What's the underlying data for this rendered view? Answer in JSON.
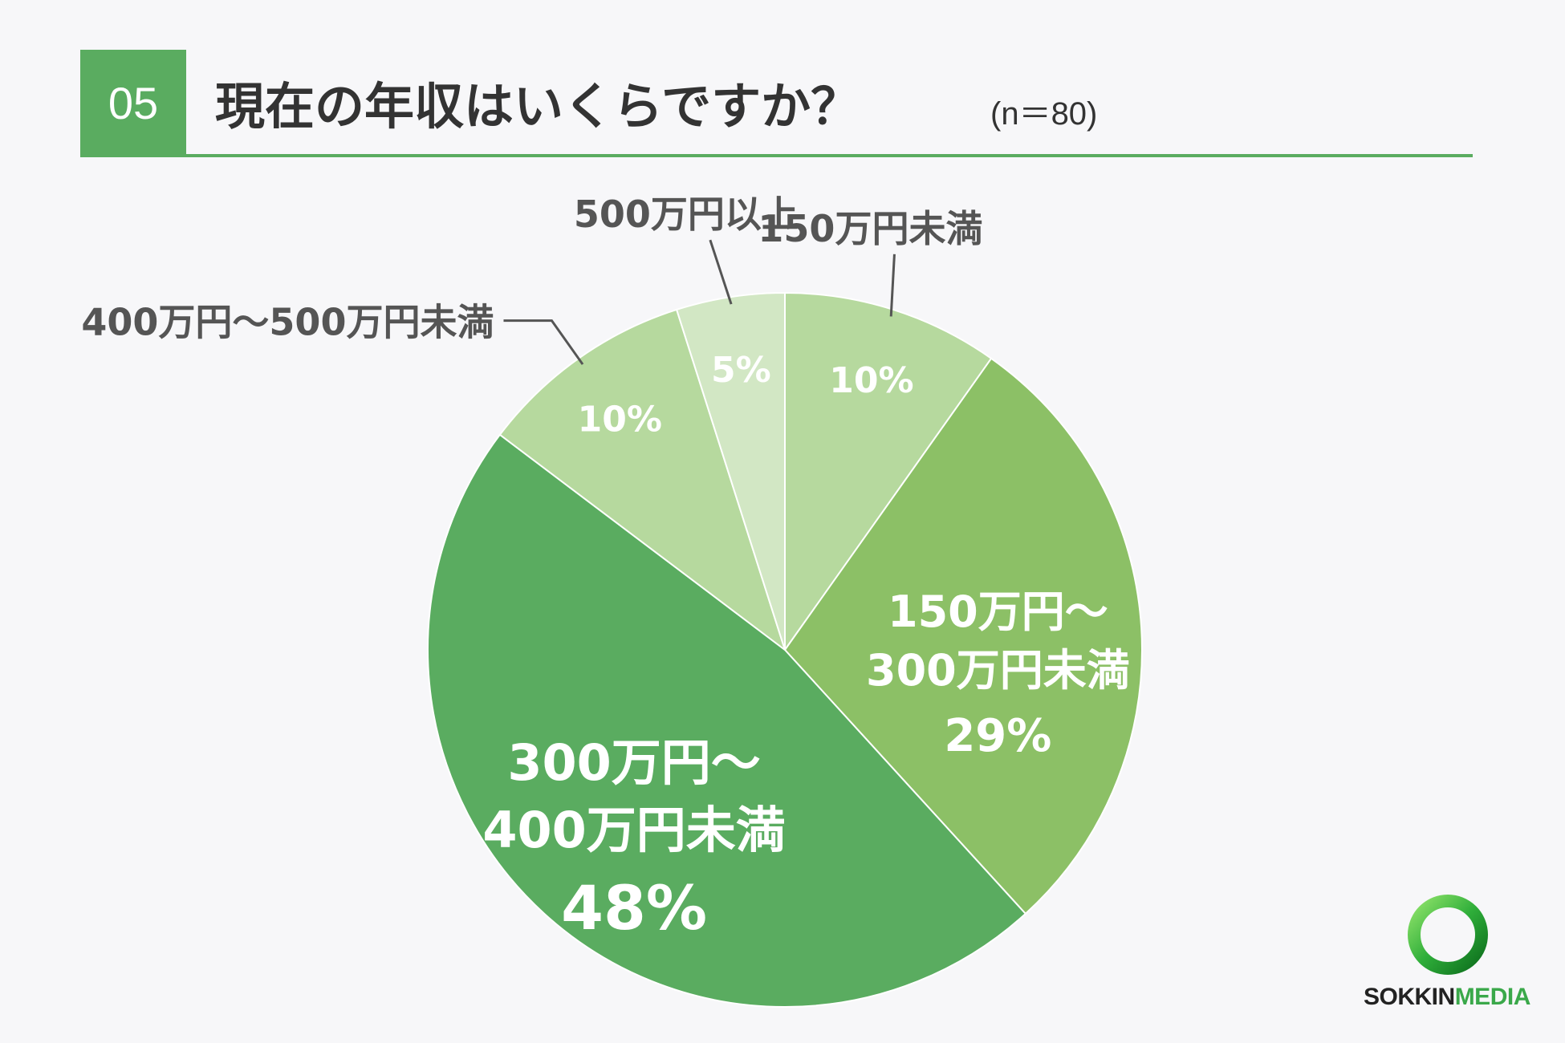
{
  "header": {
    "number": "05",
    "title": "現在の年収はいくらですか？",
    "sample": "(n＝80)"
  },
  "colors": {
    "accent": "#5aac60",
    "text": "#555555",
    "slice_a": "#b6d99e",
    "slice_b": "#8cc066",
    "slice_c": "#5aac60",
    "slice_d": "#b6d99e",
    "slice_e": "#d2e7c4"
  },
  "chart_data": {
    "type": "pie",
    "start": "top",
    "direction": "clockwise",
    "slices": [
      {
        "label": "150万円未満",
        "value": 10,
        "value_label": "10%",
        "color": "#b6d99e",
        "label_placement": "outside"
      },
      {
        "label": "150万円～300万円未満",
        "label_lines": [
          "150万円～",
          "300万円未満"
        ],
        "value": 29,
        "value_label": "29%",
        "color": "#8cc066",
        "label_placement": "inside"
      },
      {
        "label": "300万円～400万円未満",
        "label_lines": [
          "300万円～",
          "400万円未満"
        ],
        "value": 48,
        "value_label": "48%",
        "color": "#5aac60",
        "label_placement": "inside"
      },
      {
        "label": "400万円～500万円未満",
        "value": 10,
        "value_label": "10%",
        "color": "#b6d99e",
        "label_placement": "outside"
      },
      {
        "label": "500万円以上",
        "value": 5,
        "value_label": "5%",
        "color": "#d2e7c4",
        "label_placement": "outside"
      }
    ]
  },
  "logo": {
    "text_dark": "SOKKIN",
    "text_green": "MEDIA"
  }
}
